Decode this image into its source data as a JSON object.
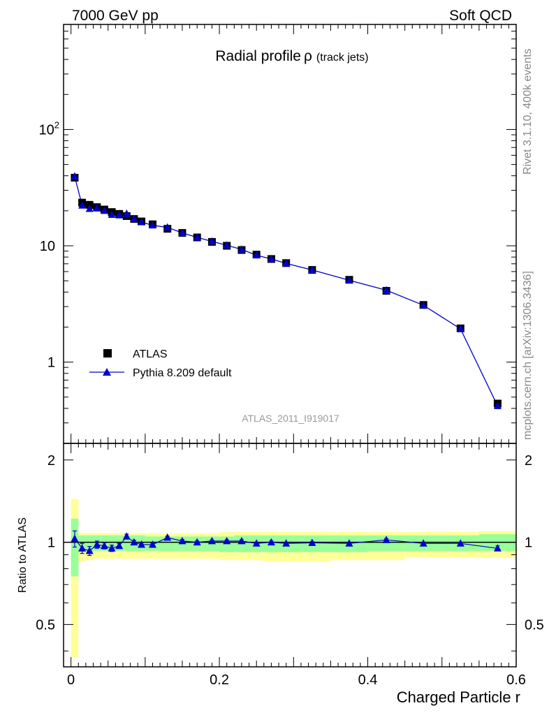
{
  "header": {
    "left": "7000 GeV pp",
    "right": "Soft QCD"
  },
  "side_text": {
    "rivet": "Rivet 3.1.10,  400k events",
    "mcplots": "mcplots.cern.ch [arXiv:1306.3436]"
  },
  "colors": {
    "mc": "#0000cc",
    "data": "#000000",
    "band_inner": "#99ff99",
    "band_outer": "#ffff99"
  },
  "chart_data": [
    {
      "type": "scatter",
      "title": "Radial profile",
      "title_symbol": "ρ",
      "title_suffix": "(track jets)",
      "analysis_label": "ATLAS_2011_I919017",
      "xlim": [
        -0.01,
        0.6
      ],
      "ylim": [
        0.2,
        800
      ],
      "yscale": "log",
      "y_ticks": [
        {
          "value": 1,
          "label": "1"
        },
        {
          "value": 10,
          "label": "10"
        },
        {
          "value": 100,
          "label": "10",
          "sup": "2"
        }
      ],
      "legend": {
        "placement": "bottom-left",
        "entries": [
          "ATLAS",
          "Pythia 8.209 default"
        ]
      },
      "x": [
        0.005,
        0.015,
        0.025,
        0.035,
        0.045,
        0.055,
        0.065,
        0.075,
        0.085,
        0.095,
        0.11,
        0.13,
        0.15,
        0.17,
        0.19,
        0.21,
        0.23,
        0.25,
        0.27,
        0.29,
        0.325,
        0.375,
        0.425,
        0.475,
        0.525,
        0.575
      ],
      "series": [
        {
          "name": "ATLAS",
          "values": [
            38.5,
            23.5,
            22.5,
            21.5,
            20.5,
            19.5,
            18.8,
            18.0,
            17.0,
            16.2,
            15.3,
            14.0,
            12.9,
            11.8,
            10.8,
            10.0,
            9.2,
            8.4,
            7.7,
            7.1,
            6.2,
            5.1,
            4.1,
            3.1,
            1.95,
            0.44
          ]
        },
        {
          "name": "Pythia 8.209 default",
          "values": [
            39.5,
            22.2,
            20.8,
            21.0,
            20.0,
            18.5,
            18.3,
            18.9,
            17.0,
            16.0,
            15.0,
            14.4,
            12.9,
            11.8,
            10.9,
            10.1,
            9.3,
            8.3,
            7.7,
            7.05,
            6.2,
            5.05,
            4.15,
            3.08,
            1.93,
            0.42
          ]
        }
      ]
    },
    {
      "type": "scatter",
      "ylabel": "Ratio to ATLAS",
      "xlabel": "Charged Particle r",
      "xlim": [
        -0.01,
        0.6
      ],
      "ylim": [
        0.35,
        2.3
      ],
      "yscale": "log",
      "y_ticks": [
        {
          "value": 0.5,
          "label": "0.5"
        },
        {
          "value": 1,
          "label": "1"
        },
        {
          "value": 2,
          "label": "2"
        }
      ],
      "x_ticks": [
        {
          "value": 0,
          "label": "0"
        },
        {
          "value": 0.2,
          "label": "0.2"
        },
        {
          "value": 0.4,
          "label": "0.4"
        },
        {
          "value": 0.6,
          "label": "0.6"
        }
      ],
      "x": [
        0.005,
        0.015,
        0.025,
        0.035,
        0.045,
        0.055,
        0.065,
        0.075,
        0.085,
        0.095,
        0.11,
        0.13,
        0.15,
        0.17,
        0.19,
        0.21,
        0.23,
        0.25,
        0.27,
        0.29,
        0.325,
        0.375,
        0.425,
        0.475,
        0.525,
        0.575
      ],
      "bin_edges": [
        0,
        0.01,
        0.02,
        0.03,
        0.04,
        0.05,
        0.06,
        0.07,
        0.08,
        0.09,
        0.1,
        0.12,
        0.14,
        0.16,
        0.18,
        0.2,
        0.22,
        0.24,
        0.26,
        0.28,
        0.3,
        0.35,
        0.4,
        0.45,
        0.5,
        0.55,
        0.6
      ],
      "series": [
        {
          "name": "Pythia 8.209 default",
          "values": [
            1.03,
            0.95,
            0.93,
            0.98,
            0.97,
            0.95,
            0.97,
            1.05,
            1.0,
            0.98,
            0.98,
            1.04,
            1.01,
            1.0,
            1.01,
            1.01,
            1.01,
            0.99,
            1.0,
            0.99,
            0.995,
            0.99,
            1.02,
            0.99,
            0.99,
            0.95
          ],
          "errors": [
            0.07,
            0.04,
            0.035,
            0.03,
            0.025,
            0.025,
            0.02,
            0.02,
            0.015,
            0.015,
            0.012,
            0.012,
            0.012,
            0.01,
            0.01,
            0.01,
            0.01,
            0.01,
            0.01,
            0.01,
            0.01,
            0.01,
            0.01,
            0.01,
            0.01,
            0.02
          ]
        }
      ],
      "bands": {
        "inner_low": [
          0.75,
          0.92,
          0.92,
          0.93,
          0.93,
          0.93,
          0.93,
          0.93,
          0.93,
          0.93,
          0.93,
          0.93,
          0.93,
          0.93,
          0.93,
          0.92,
          0.92,
          0.92,
          0.92,
          0.92,
          0.92,
          0.92,
          0.93,
          0.93,
          0.93,
          0.93
        ],
        "inner_high": [
          1.22,
          1.06,
          1.06,
          1.06,
          1.06,
          1.06,
          1.06,
          1.06,
          1.06,
          1.06,
          1.05,
          1.05,
          1.05,
          1.05,
          1.05,
          1.05,
          1.06,
          1.06,
          1.06,
          1.06,
          1.06,
          1.06,
          1.06,
          1.06,
          1.06,
          1.07
        ],
        "outer_low": [
          0.38,
          0.85,
          0.86,
          0.87,
          0.87,
          0.87,
          0.87,
          0.87,
          0.87,
          0.87,
          0.87,
          0.87,
          0.87,
          0.87,
          0.87,
          0.86,
          0.86,
          0.86,
          0.85,
          0.85,
          0.85,
          0.86,
          0.86,
          0.88,
          0.88,
          0.88
        ],
        "outer_high": [
          1.44,
          1.08,
          1.08,
          1.08,
          1.08,
          1.08,
          1.08,
          1.08,
          1.08,
          1.08,
          1.08,
          1.08,
          1.08,
          1.08,
          1.08,
          1.09,
          1.09,
          1.09,
          1.09,
          1.09,
          1.09,
          1.09,
          1.09,
          1.09,
          1.09,
          1.1
        ]
      }
    }
  ]
}
